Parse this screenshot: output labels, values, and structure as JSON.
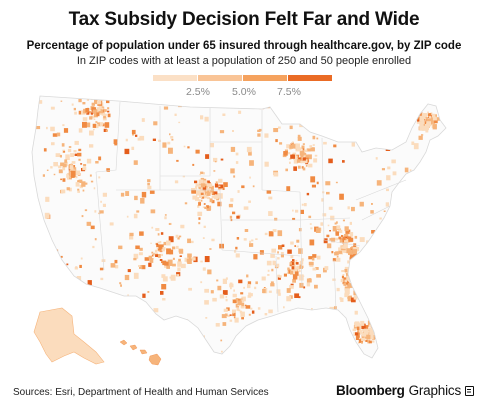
{
  "title": "Tax Subsidy Decision Felt Far and Wide",
  "subtitle": "Percentage of population under 65 insured through healthcare.gov, by ZIP code",
  "subnote": "In ZIP codes with at least a population of 250 and 50 people enrolled",
  "legend": {
    "labels": [
      "2.5%",
      "5.0%",
      "7.5%"
    ],
    "colors": [
      "#fbe0c6",
      "#f9c496",
      "#f5a25e",
      "#ea6b25"
    ]
  },
  "map_colors": {
    "land": "#fbfbfb",
    "border": "#d9d9d9",
    "light": "#fbdcbd",
    "mid": "#f6b47b",
    "high": "#f08a42",
    "max": "#e45d1b"
  },
  "sources": "Sources: Esri, Department of Health and Human Services",
  "brand": {
    "name": "Bloomberg",
    "suffix": "Graphics"
  }
}
